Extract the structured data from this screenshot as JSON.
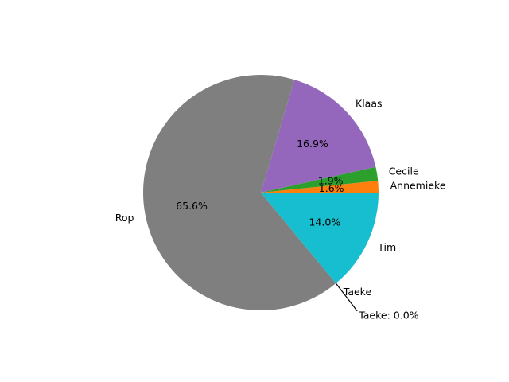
{
  "chart_data": {
    "type": "pie",
    "start_angle_deg": 0,
    "direction": "counterclockwise",
    "slices": [
      {
        "label": "Annemieke",
        "value": 1.6,
        "pct_label": "1.6%",
        "color": "#ff7f0e"
      },
      {
        "label": "Cecile",
        "value": 1.9,
        "pct_label": "1.9%",
        "color": "#2ca02c"
      },
      {
        "label": "Klaas",
        "value": 16.9,
        "pct_label": "16.9%",
        "color": "#9467bd"
      },
      {
        "label": "Rop",
        "value": 65.6,
        "pct_label": "65.6%",
        "color": "#7f7f7f"
      },
      {
        "label": "Taeke",
        "value": 0.0,
        "pct_label": "",
        "color": "#bcbd22"
      },
      {
        "label": "Tim",
        "value": 14.0,
        "pct_label": "14.0%",
        "color": "#17becf"
      }
    ],
    "annotations": [
      {
        "text": "Taeke: 0.0%",
        "slice": "Taeke"
      }
    ]
  }
}
